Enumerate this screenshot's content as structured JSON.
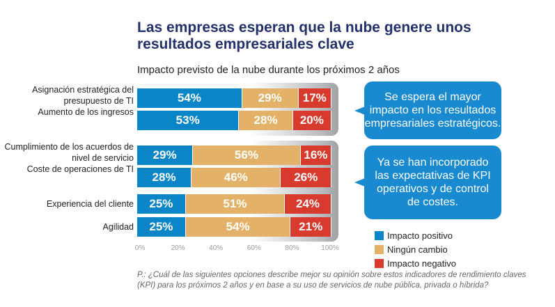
{
  "chart_data": {
    "type": "bar",
    "orientation": "horizontal",
    "stacked": true,
    "title": "Las empresas esperan que la nube genere unos resultados empresariales clave",
    "subtitle": "Impacto previsto de la nube durante los próximos 2 años",
    "categories": [
      "Asignación estratégica del presupuesto de TI",
      "Aumento de los ingresos",
      "Cumplimiento de los acuerdos de nivel de servicio",
      "Coste de operaciones de TI",
      "Experiencia del cliente",
      "Agilidad"
    ],
    "series": [
      {
        "name": "Impacto positivo",
        "color": "#0a86c8",
        "values": [
          54,
          53,
          29,
          28,
          25,
          25
        ]
      },
      {
        "name": "Ningún cambio",
        "color": "#e3b268",
        "values": [
          29,
          28,
          56,
          46,
          51,
          54
        ]
      },
      {
        "name": "Impacto negativo",
        "color": "#d83a2e",
        "values": [
          17,
          20,
          16,
          26,
          24,
          21
        ]
      }
    ],
    "xticks": [
      "0%",
      "20%",
      "40%",
      "60%",
      "80%",
      "100%"
    ],
    "xlim": [
      0,
      100
    ],
    "legend_position": "bottom-right",
    "annotations": [
      "Se espera el mayor impacto en los resultados empresariales estratégicos.",
      "Ya se han incorporado las expectativas de KPI operativos y de control de costes."
    ],
    "footnote": "P.: ¿Cuál de las siguientes opciones describe mejor su opinión sobre estos indicadores de rendimiento claves (KPI) para los próximos 2 años y en base a su uso de servicios de nube pública, privada o híbrida?"
  }
}
